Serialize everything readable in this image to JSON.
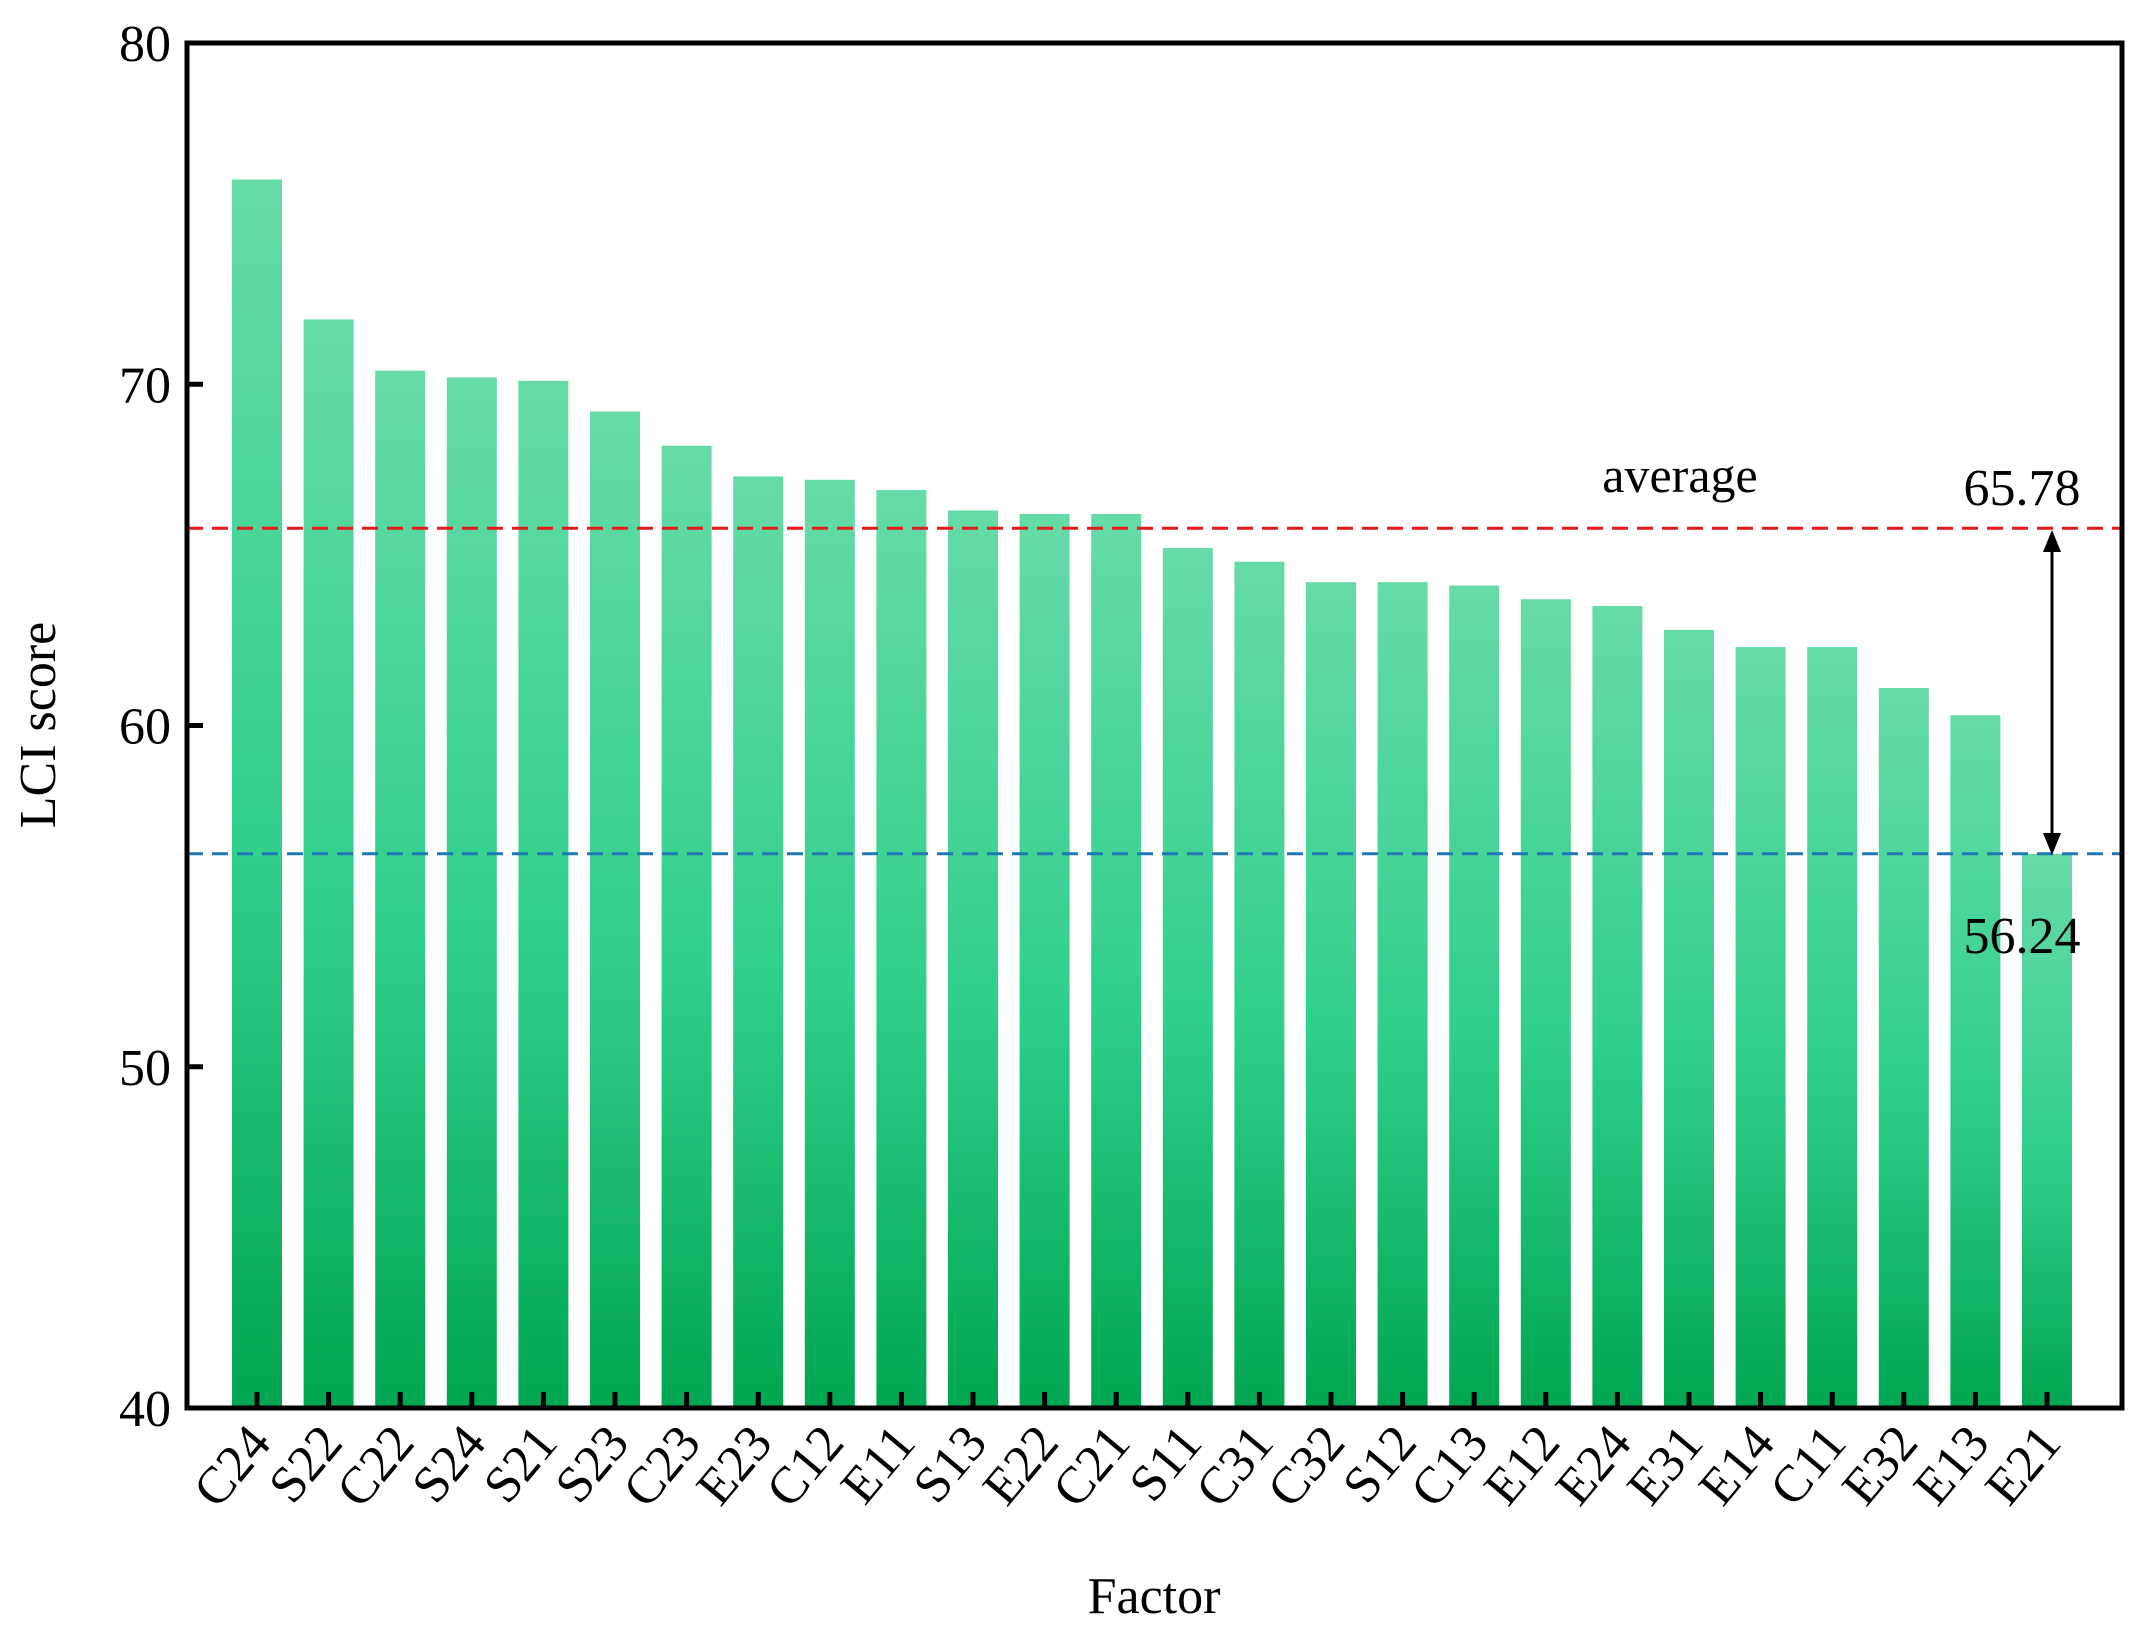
{
  "chart_data": {
    "type": "bar",
    "title": "",
    "xlabel": "Factor",
    "ylabel": "LCI score",
    "ylim": [
      40,
      80
    ],
    "yticks": [
      40,
      50,
      60,
      70,
      80
    ],
    "grid": false,
    "categories": [
      "C24",
      "S22",
      "C22",
      "S24",
      "S21",
      "S23",
      "C23",
      "E23",
      "C12",
      "E11",
      "S13",
      "E22",
      "C21",
      "S11",
      "C31",
      "C32",
      "S12",
      "C13",
      "E12",
      "E24",
      "E31",
      "E14",
      "C11",
      "E32",
      "E13",
      "E21"
    ],
    "values": [
      76.0,
      71.9,
      70.4,
      70.2,
      70.1,
      69.2,
      68.2,
      67.3,
      67.2,
      66.9,
      66.3,
      66.2,
      66.2,
      65.2,
      64.8,
      64.2,
      64.2,
      64.1,
      63.7,
      63.5,
      62.8,
      62.3,
      62.3,
      61.1,
      60.3,
      56.24
    ],
    "bar_color_top": "#66dba8",
    "bar_color_bottom": "#00a651",
    "reference_lines": [
      {
        "value": 65.78,
        "label": "65.78",
        "color": "#e41a1c",
        "caption": "average"
      },
      {
        "value": 56.24,
        "label": "56.24",
        "color": "#1f78b4"
      }
    ]
  }
}
